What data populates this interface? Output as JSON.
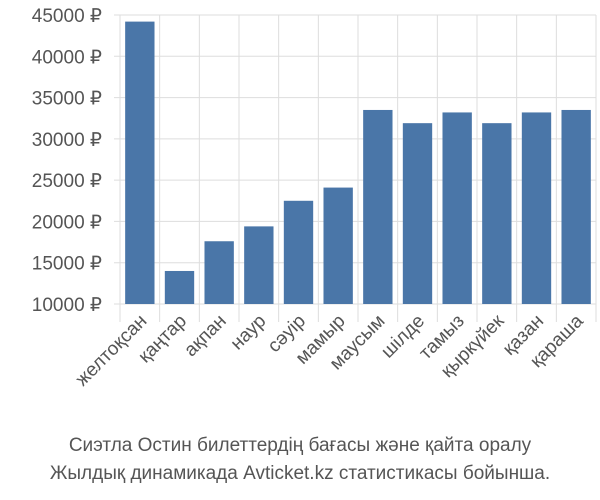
{
  "chart_data": {
    "type": "bar",
    "categories": [
      "желтоқсан",
      "қаңтар",
      "ақпан",
      "наур",
      "сәуір",
      "мамыр",
      "маусым",
      "шілде",
      "тамыз",
      "қыркүйек",
      "қазан",
      "қараша"
    ],
    "values": [
      44200,
      14000,
      17600,
      19400,
      22500,
      24100,
      33500,
      31900,
      33200,
      31900,
      33200,
      33500
    ],
    "ylim": [
      10000,
      45000
    ],
    "yticks": [
      10000,
      15000,
      20000,
      25000,
      30000,
      35000,
      40000,
      45000
    ],
    "ytick_suffix": " ₽",
    "grid": true,
    "bar_color": "#4a76a8"
  },
  "caption": {
    "line1": "Сиэтла Остин билеттердің бағасы және қайта оралу",
    "line2": "Жылдық динамикада Avticket.kz статистикасы бойынша."
  }
}
